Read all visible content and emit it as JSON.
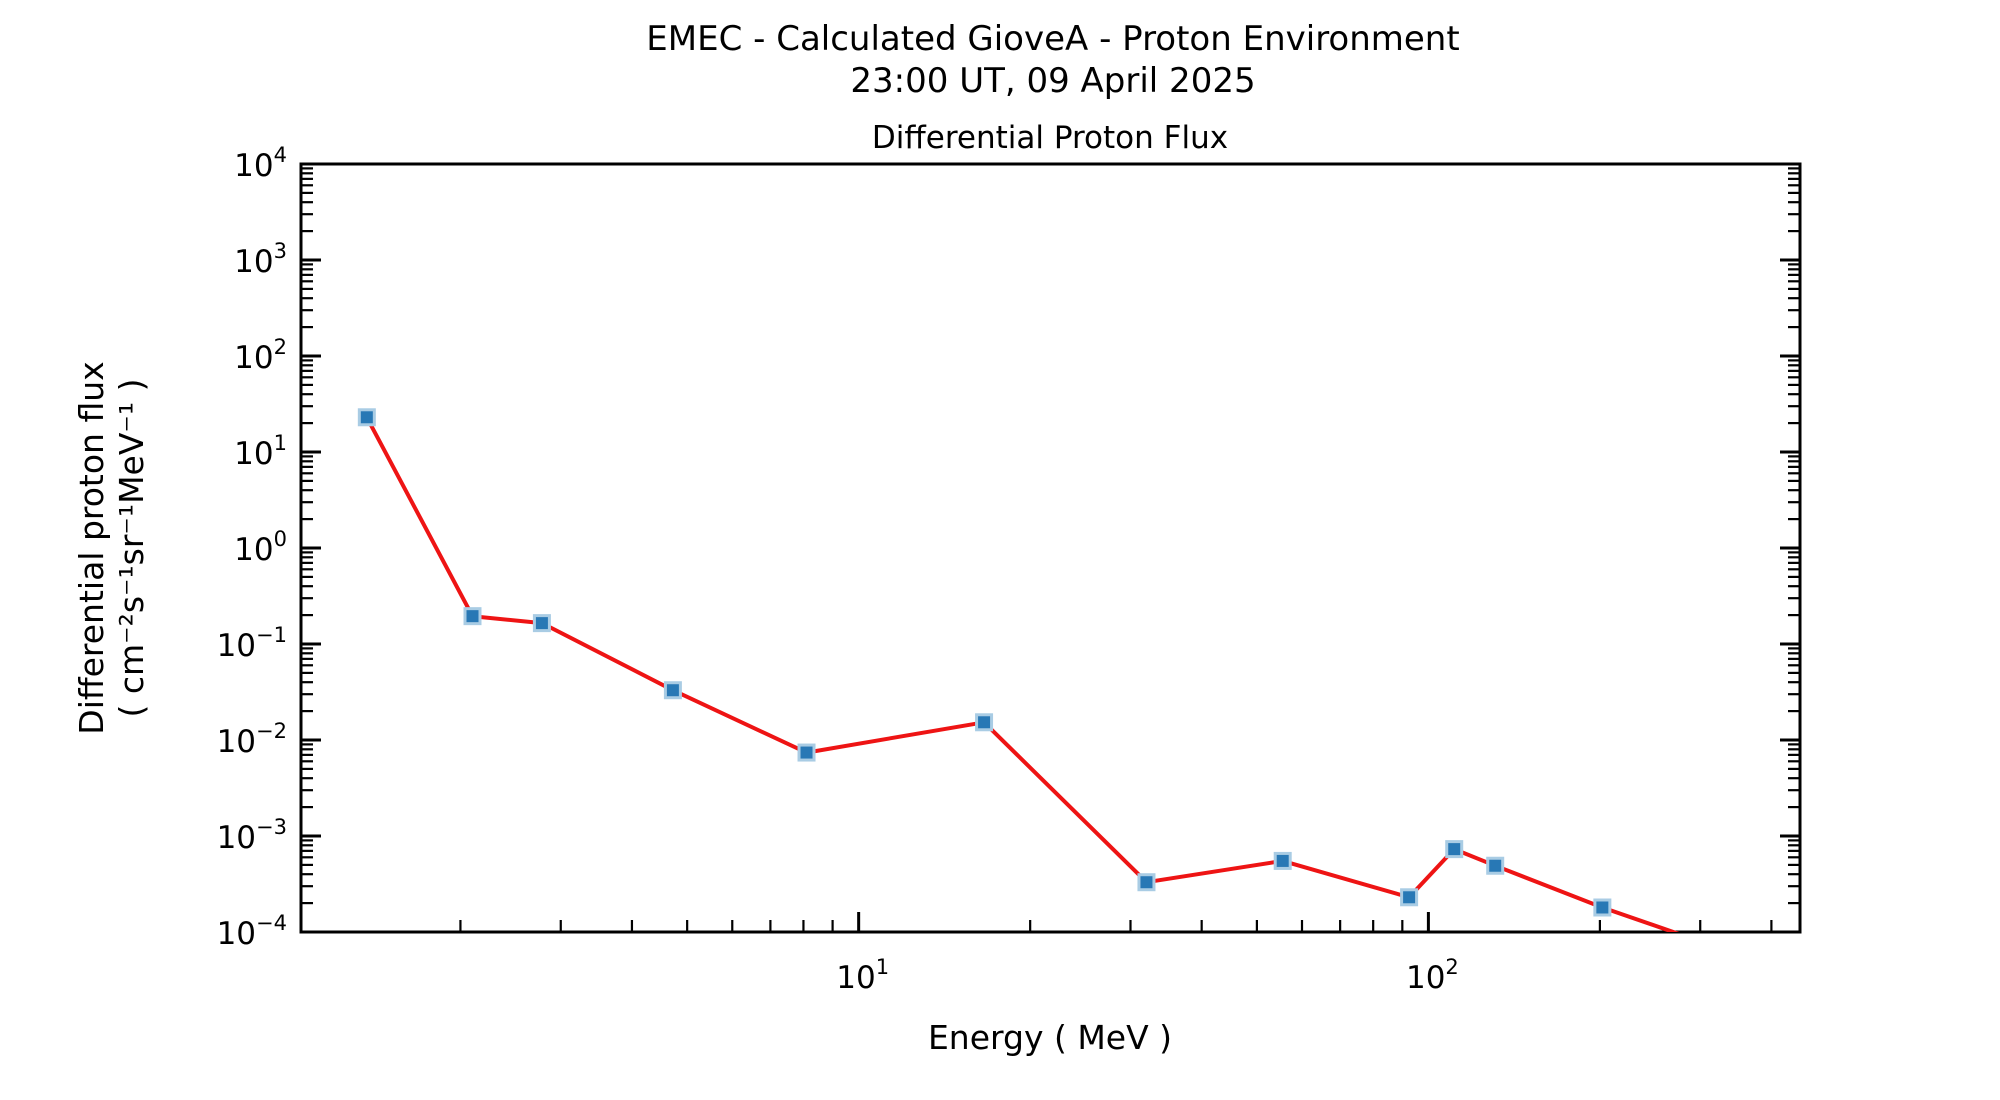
{
  "header": {
    "title_line1": "EMEC - Calculated GioveA - Proton Environment",
    "title_line2": "23:00 UT, 09 April 2025"
  },
  "chart_data": {
    "type": "line",
    "title": "Differential Proton Flux",
    "xlabel": "Energy ( MeV )",
    "ylabel_line1": "Differential proton flux",
    "ylabel_line2": "( cm⁻²s⁻¹sr⁻¹MeV⁻¹ )",
    "x_scale": "log",
    "y_scale": "log",
    "xlim": [
      1.05,
      449
    ],
    "ylim": [
      0.0001,
      10000
    ],
    "x_major_ticks": [
      10,
      100
    ],
    "x_major_tick_exponents": [
      1,
      2
    ],
    "y_major_tick_exponents": [
      4,
      3,
      2,
      1,
      0,
      -1,
      -2,
      -3,
      -4
    ],
    "grid": false,
    "legend": "none",
    "series": [
      {
        "name": "differential-proton-flux",
        "line_color": "#ee1414",
        "marker": "square",
        "marker_color": "#2878b5",
        "marker_edge_color": "#a9cce4",
        "x": [
          1.37,
          2.1,
          2.78,
          4.72,
          8.1,
          16.6,
          32.0,
          55.5,
          92.5,
          111,
          131,
          202,
          300
        ],
        "y": [
          23,
          0.195,
          0.165,
          0.033,
          0.0074,
          0.0153,
          0.00033,
          0.00055,
          0.00023,
          0.00073,
          0.00049,
          0.00018,
          8e-05
        ],
        "last_point_clipped_below_ymin": true
      }
    ]
  }
}
